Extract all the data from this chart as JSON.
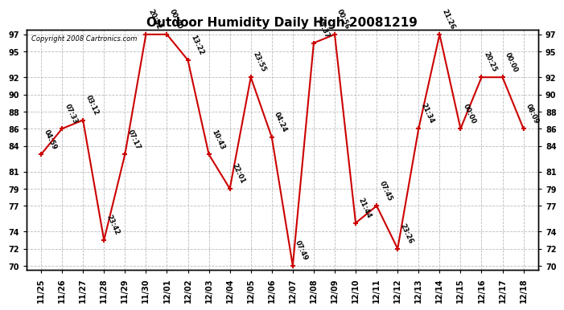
{
  "title": "Outdoor Humidity Daily High 20081219",
  "copyright": "Copyright 2008 Cartronics.com",
  "x_labels": [
    "11/25",
    "11/26",
    "11/27",
    "11/28",
    "11/29",
    "11/30",
    "12/01",
    "12/02",
    "12/03",
    "12/04",
    "12/05",
    "12/06",
    "12/07",
    "12/08",
    "12/09",
    "12/10",
    "12/11",
    "12/12",
    "12/13",
    "12/14",
    "12/15",
    "12/16",
    "12/17",
    "12/18"
  ],
  "y_values": [
    83,
    86,
    87,
    73,
    83,
    97,
    97,
    94,
    83,
    79,
    92,
    85,
    70,
    96,
    97,
    75,
    77,
    72,
    86,
    97,
    86,
    92,
    92,
    86
  ],
  "time_labels": [
    "04:59",
    "07:33",
    "03:12",
    "23:42",
    "07:17",
    "20:42",
    "00:00",
    "13:22",
    "10:43",
    "22:01",
    "23:55",
    "04:24",
    "07:49",
    "15:37",
    "00:56",
    "21:44",
    "07:45",
    "23:26",
    "21:34",
    "21:26",
    "00:00",
    "20:25",
    "00:00",
    "08:09"
  ],
  "ylim": [
    69.5,
    97.5
  ],
  "yticks": [
    70,
    72,
    74,
    77,
    79,
    81,
    84,
    86,
    88,
    90,
    92,
    95,
    97
  ],
  "line_color": "#cc0000",
  "marker_color": "#cc0000",
  "bg_color": "#ffffff",
  "grid_color": "#bbbbbb",
  "title_fontsize": 11,
  "tick_fontsize": 7,
  "annot_fontsize": 6,
  "copyright_fontsize": 6
}
